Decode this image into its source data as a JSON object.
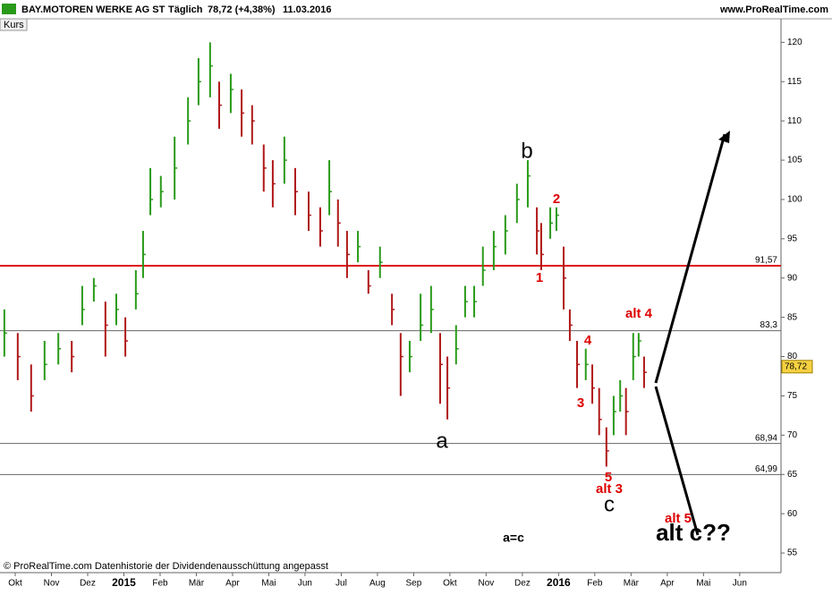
{
  "chart_data": {
    "type": "ohlc",
    "header": {
      "title": "BAY.MOTOREN WERKE AG ST",
      "interval": "Täglich",
      "quote": "78,72 (+4,38%)",
      "date": "11.03.2016",
      "site": "www.ProRealTime.com",
      "panel": "Kurs",
      "footer": "© ProRealTime.com Datenhistorie der Dividendenausschüttung angepasst"
    },
    "xlim": [
      -0.42,
      21.14
    ],
    "xticks": [
      {
        "value": 0,
        "label": "Okt"
      },
      {
        "value": 1,
        "label": "Nov"
      },
      {
        "value": 2,
        "label": "Dez"
      },
      {
        "value": 3,
        "label": "2015"
      },
      {
        "value": 4,
        "label": "Feb"
      },
      {
        "value": 5,
        "label": "Mär"
      },
      {
        "value": 6,
        "label": "Apr"
      },
      {
        "value": 7,
        "label": "Mai"
      },
      {
        "value": 8,
        "label": "Jun"
      },
      {
        "value": 9,
        "label": "Jul"
      },
      {
        "value": 10,
        "label": "Aug"
      },
      {
        "value": 11,
        "label": "Sep"
      },
      {
        "value": 12,
        "label": "Okt"
      },
      {
        "value": 13,
        "label": "Nov"
      },
      {
        "value": 14,
        "label": "Dez"
      },
      {
        "value": 15,
        "label": "2016"
      },
      {
        "value": 16,
        "label": "Feb"
      },
      {
        "value": 17,
        "label": "Mär"
      },
      {
        "value": 18,
        "label": "Apr"
      },
      {
        "value": 19,
        "label": "Mai"
      },
      {
        "value": 20,
        "label": "Jun"
      }
    ],
    "ylim": [
      52.5,
      123
    ],
    "yticks": [
      55,
      60,
      65,
      70,
      75,
      80,
      85,
      90,
      95,
      100,
      105,
      110,
      115,
      120
    ],
    "up_color": "#2a9a1a",
    "down_color": "#b01818",
    "series": [
      {
        "name": "Kurs",
        "x": [
          -0.3,
          0.07,
          0.44,
          0.81,
          1.19,
          1.56,
          1.85,
          2.17,
          2.49,
          2.79,
          3.04,
          3.33,
          3.53,
          3.73,
          4.02,
          4.4,
          4.77,
          5.06,
          5.38,
          5.63,
          5.95,
          6.25,
          6.54,
          6.86,
          7.11,
          7.43,
          7.73,
          8.1,
          8.42,
          8.67,
          8.91,
          9.16,
          9.46,
          9.75,
          10.07,
          10.4,
          10.64,
          10.89,
          11.19,
          11.48,
          11.73,
          11.93,
          12.17,
          12.42,
          12.67,
          12.91,
          13.21,
          13.53,
          13.85,
          14.15,
          14.4,
          14.52,
          14.77,
          14.94,
          15.14,
          15.31,
          15.51,
          15.75,
          15.93,
          16.12,
          16.32,
          16.52,
          16.7,
          16.86,
          17.06,
          17.21,
          17.36
        ],
        "high": [
          86,
          83,
          79,
          82,
          83,
          82,
          89,
          90,
          87,
          88,
          85,
          91,
          96,
          104,
          103,
          108,
          113,
          118,
          120,
          115,
          116,
          114,
          112,
          107,
          105,
          108,
          104,
          101,
          99,
          105,
          100,
          96,
          96,
          91,
          94,
          88,
          83,
          82,
          88,
          89,
          83,
          80,
          84,
          89,
          89,
          94,
          96,
          98,
          102,
          105,
          99,
          97,
          99,
          99,
          94,
          86,
          82,
          81,
          79,
          76,
          71,
          75,
          77,
          76,
          83,
          83,
          80
        ],
        "low": [
          80,
          77,
          73,
          77,
          79,
          78,
          84,
          87,
          80,
          84,
          80,
          86,
          90,
          98,
          99,
          100,
          107,
          112,
          113,
          109,
          111,
          108,
          107,
          101,
          99,
          102,
          98,
          96,
          94,
          98,
          94,
          90,
          92,
          88,
          90,
          84,
          75,
          78,
          82,
          83,
          74,
          72,
          79,
          85,
          85,
          89,
          91,
          93,
          97,
          99,
          93,
          91,
          95,
          96,
          86,
          82,
          76,
          77,
          74,
          70,
          66,
          70,
          73,
          70,
          77,
          80,
          76
        ],
        "close": [
          83,
          80,
          75,
          79,
          81,
          80,
          86,
          89,
          84,
          86,
          82,
          88,
          93,
          100,
          101,
          104,
          110,
          115,
          117,
          112,
          114,
          111,
          110,
          104,
          102,
          105,
          101,
          98,
          96,
          101,
          97,
          93,
          94,
          89,
          92,
          86,
          80,
          80,
          84,
          86,
          79,
          76,
          81,
          87,
          87,
          91,
          94,
          96,
          100,
          103,
          96,
          93,
          97,
          98,
          90,
          84,
          79,
          79,
          76,
          72,
          68,
          73,
          75,
          73,
          80,
          82,
          78
        ]
      }
    ],
    "levels": [
      {
        "value": 91.57,
        "label": "91,57",
        "color": "#e01010"
      },
      {
        "value": 83.3,
        "label": "83,3",
        "color": "#666666"
      },
      {
        "value": 68.94,
        "label": "68,94",
        "color": "#666666"
      },
      {
        "value": 64.99,
        "label": "64,99",
        "color": "#666666"
      }
    ],
    "last": {
      "value": 78.72,
      "label": "78,72"
    },
    "annotations": [
      "a",
      "b",
      "c",
      "1",
      "2",
      "3",
      "4",
      "5",
      "alt 4",
      "alt 3",
      "alt 5",
      "alt c??",
      "a=c"
    ]
  }
}
